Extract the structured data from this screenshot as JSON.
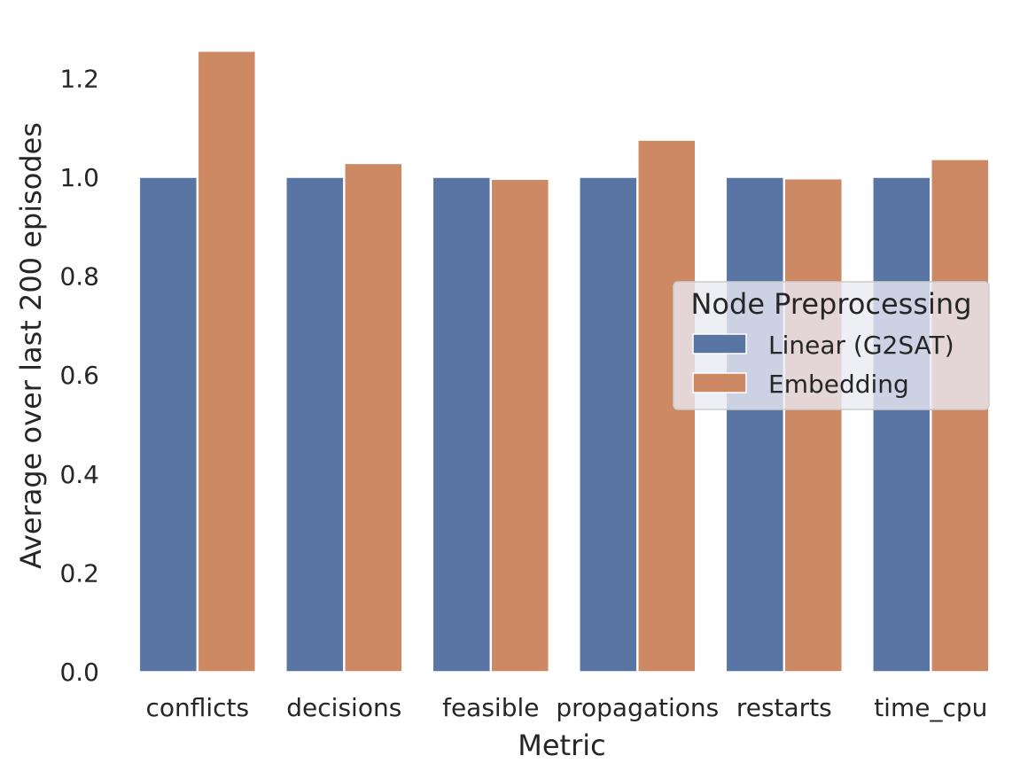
{
  "chart_data": {
    "type": "bar",
    "categories": [
      "conflicts",
      "decisions",
      "feasible",
      "propagations",
      "restarts",
      "time_cpu"
    ],
    "series": [
      {
        "name": "Linear (G2SAT)",
        "color": "#5875a4",
        "values": [
          1.0,
          1.0,
          1.0,
          1.0,
          1.0,
          1.0
        ]
      },
      {
        "name": "Embedding",
        "color": "#cc8963",
        "values": [
          1.255,
          1.028,
          0.996,
          1.075,
          0.997,
          1.036
        ]
      }
    ],
    "xlabel": "Metric",
    "ylabel": "Average over last 200 episodes",
    "ylim": [
      0,
      1.3
    ],
    "yticks": [
      0.0,
      0.2,
      0.4,
      0.6,
      0.8,
      1.0,
      1.2
    ],
    "ytick_labels": [
      "0.0",
      "0.2",
      "0.4",
      "0.6",
      "0.8",
      "1.0",
      "1.2"
    ],
    "legend": {
      "title": "Node Preprocessing",
      "placement": "center-right"
    },
    "grid": false
  }
}
